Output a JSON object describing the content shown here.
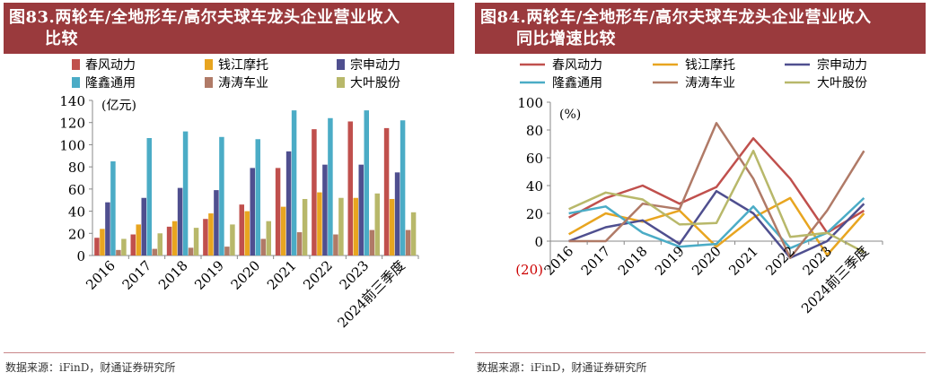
{
  "left": {
    "title_line1": "图83.两轮车/全地形车/高尔夫球车龙头企业营业收入",
    "title_line2": "比较",
    "footer": "数据来源：iFinD，财通证券研究所",
    "chart_data": {
      "type": "bar",
      "unit_label": "(亿元)",
      "categories": [
        "2016",
        "2017",
        "2018",
        "2019",
        "2020",
        "2021",
        "2022",
        "2023",
        "2024前三季度"
      ],
      "ylim": [
        0,
        140
      ],
      "yticks": [
        0,
        20,
        40,
        60,
        80,
        100,
        120,
        140
      ],
      "series": [
        {
          "name": "春风动力",
          "color": "#c0504d",
          "values": [
            16,
            19,
            26,
            33,
            46,
            79,
            114,
            121,
            115
          ]
        },
        {
          "name": "钱江摩托",
          "color": "#e8a520",
          "values": [
            24,
            28,
            31,
            38,
            40,
            44,
            57,
            52,
            51
          ]
        },
        {
          "name": "宗申动力",
          "color": "#4f4f8f",
          "values": [
            48,
            52,
            61,
            59,
            79,
            94,
            82,
            82,
            75
          ]
        },
        {
          "name": "隆鑫通用",
          "color": "#4bacc6",
          "values": [
            85,
            106,
            112,
            107,
            105,
            131,
            124,
            131,
            122
          ]
        },
        {
          "name": "涛涛车业",
          "color": "#b07a67",
          "values": [
            5,
            6,
            7,
            8,
            15,
            21,
            19,
            23,
            23
          ]
        },
        {
          "name": "大叶股份",
          "color": "#b8b86a",
          "values": [
            15,
            20,
            25,
            28,
            31,
            51,
            52,
            56,
            39
          ]
        }
      ]
    }
  },
  "right": {
    "title_line1": "图84.两轮车/全地形车/高尔夫球车龙头企业营业收入",
    "title_line2": "同比增速比较",
    "footer": "数据来源：iFinD，财通证券研究所",
    "chart_data": {
      "type": "line",
      "unit_label": "(%)",
      "categories": [
        "2016",
        "2017",
        "2018",
        "2019",
        "2020",
        "2021",
        "2022",
        "2023",
        "2024前三季度"
      ],
      "ylim": [
        -20,
        100
      ],
      "yticks": [
        -20,
        0,
        20,
        40,
        60,
        80,
        100
      ],
      "ytick_labels": [
        "(20)",
        "0",
        "20",
        "40",
        "60",
        "80",
        "100"
      ],
      "series": [
        {
          "name": "春风动力",
          "color": "#c0504d",
          "values": [
            17,
            31,
            40,
            27,
            39,
            74,
            45,
            6,
            22
          ]
        },
        {
          "name": "钱江摩托",
          "color": "#e8a520",
          "values": [
            5,
            20,
            14,
            22,
            -4,
            17,
            31,
            -10,
            20
          ]
        },
        {
          "name": "宗申动力",
          "color": "#4f4f8f",
          "values": [
            0,
            10,
            15,
            -2,
            36,
            20,
            -12,
            0,
            27
          ]
        },
        {
          "name": "隆鑫通用",
          "color": "#4bacc6",
          "values": [
            20,
            25,
            6,
            -4,
            -2,
            25,
            -5,
            6,
            31
          ]
        },
        {
          "name": "涛涛车业",
          "color": "#b07a67",
          "values": [
            0,
            0,
            27,
            23,
            85,
            45,
            -12,
            22,
            65
          ]
        },
        {
          "name": "大叶股份",
          "color": "#b8b86a",
          "values": [
            23,
            35,
            30,
            12,
            13,
            65,
            3,
            6,
            -8
          ]
        }
      ]
    }
  }
}
